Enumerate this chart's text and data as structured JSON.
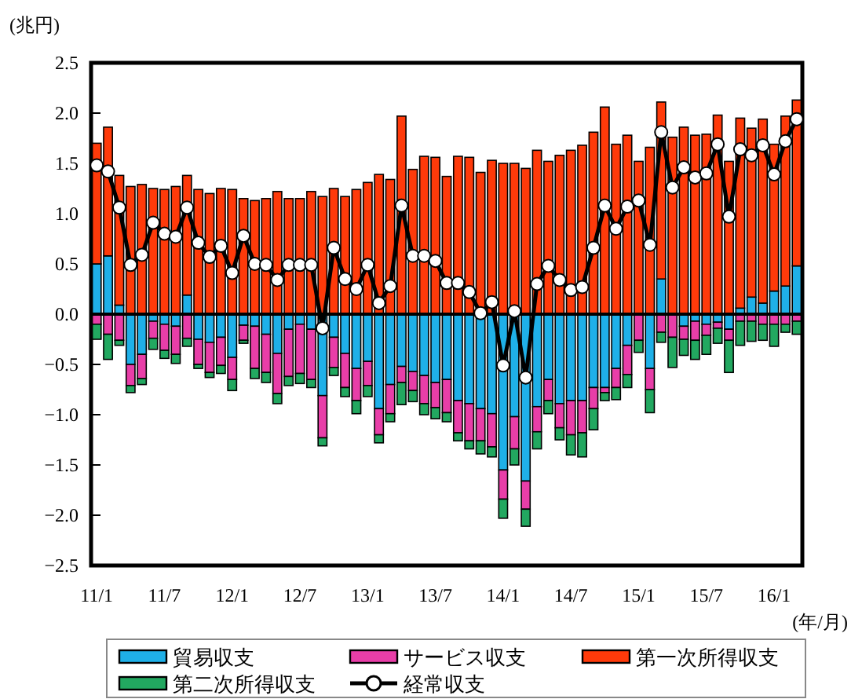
{
  "chart_data": {
    "type": "bar",
    "stacked": true,
    "ylabel": "(兆円)",
    "xlabel": "(年/月)",
    "categories": [
      "11/1",
      null,
      null,
      null,
      null,
      null,
      "11/7",
      null,
      null,
      null,
      null,
      null,
      "12/1",
      null,
      null,
      null,
      null,
      null,
      "12/7",
      null,
      null,
      null,
      null,
      null,
      "13/1",
      null,
      null,
      null,
      null,
      null,
      "13/7",
      null,
      null,
      null,
      null,
      null,
      "14/1",
      null,
      null,
      null,
      null,
      null,
      "14/7",
      null,
      null,
      null,
      null,
      null,
      "15/1",
      null,
      null,
      null,
      null,
      null,
      "15/7",
      null,
      null,
      null,
      null,
      null,
      "16/1",
      null,
      null
    ],
    "ylim": [
      -2.5,
      2.5
    ],
    "yticks": [
      {
        "value": -2.5,
        "label": "−2.5"
      },
      {
        "value": -2.0,
        "label": "−2.0"
      },
      {
        "value": -1.5,
        "label": "−1.5"
      },
      {
        "value": -1.0,
        "label": "−1.0"
      },
      {
        "value": -0.5,
        "label": "−0.5"
      },
      {
        "value": 0.0,
        "label": "0.0"
      },
      {
        "value": 0.5,
        "label": "0.5"
      },
      {
        "value": 1.0,
        "label": "1.0"
      },
      {
        "value": 1.5,
        "label": "1.5"
      },
      {
        "value": 2.0,
        "label": "2.0"
      },
      {
        "value": 2.5,
        "label": "2.5"
      }
    ],
    "legend": "bottom",
    "series": [
      {
        "name": "貿易収支",
        "color": "#1fb0e8",
        "values": [
          0.5,
          0.58,
          0.09,
          -0.5,
          -0.4,
          -0.07,
          -0.1,
          -0.12,
          0.19,
          -0.25,
          -0.28,
          -0.23,
          -0.43,
          -0.11,
          -0.12,
          -0.2,
          -0.39,
          -0.15,
          -0.1,
          -0.15,
          -0.81,
          -0.23,
          -0.39,
          -0.54,
          -0.47,
          -0.94,
          -0.7,
          -0.52,
          -0.57,
          -0.61,
          -0.68,
          -0.65,
          -0.86,
          -0.89,
          -0.94,
          -0.99,
          -1.55,
          -1.02,
          -1.66,
          -0.92,
          -0.65,
          -0.89,
          -0.86,
          -0.86,
          -0.73,
          -0.73,
          -0.54,
          -0.31,
          null,
          -0.54,
          0.35,
          null,
          -0.12,
          -0.07,
          -0.1,
          -0.08,
          -0.15,
          0.06,
          0.17,
          0.11,
          0.23,
          0.28,
          0.48
        ]
      },
      {
        "name": "サービス収支",
        "color": "#e83ea8",
        "values": [
          -0.1,
          -0.2,
          -0.26,
          -0.21,
          -0.24,
          -0.17,
          -0.26,
          -0.28,
          -0.24,
          -0.25,
          -0.3,
          -0.28,
          -0.22,
          -0.15,
          -0.42,
          -0.38,
          -0.4,
          -0.47,
          -0.49,
          -0.5,
          -0.42,
          -0.3,
          -0.34,
          -0.32,
          -0.24,
          -0.26,
          -0.29,
          -0.16,
          -0.19,
          -0.28,
          -0.25,
          -0.33,
          -0.32,
          -0.37,
          -0.32,
          -0.33,
          -0.29,
          -0.32,
          -0.28,
          -0.25,
          -0.21,
          -0.24,
          -0.34,
          -0.32,
          -0.21,
          -0.05,
          -0.19,
          -0.29,
          -0.26,
          -0.21,
          -0.18,
          -0.23,
          -0.13,
          -0.19,
          -0.11,
          -0.06,
          -0.11,
          -0.07,
          -0.07,
          -0.1,
          -0.1,
          -0.1,
          -0.07
        ]
      },
      {
        "name": "第一次所得収支",
        "color": "#ff3a0a",
        "values": [
          1.2,
          1.28,
          1.29,
          1.27,
          1.29,
          1.25,
          1.24,
          1.27,
          1.19,
          1.24,
          1.2,
          1.25,
          1.24,
          1.15,
          1.13,
          1.15,
          1.22,
          1.15,
          1.15,
          1.22,
          1.17,
          1.25,
          1.17,
          1.24,
          1.31,
          1.39,
          1.34,
          1.97,
          1.44,
          1.57,
          1.56,
          1.37,
          1.57,
          1.56,
          1.41,
          1.53,
          1.5,
          1.5,
          1.45,
          1.63,
          1.52,
          1.58,
          1.63,
          1.68,
          1.81,
          2.06,
          1.69,
          1.78,
          1.52,
          1.66,
          1.76,
          1.76,
          1.86,
          1.78,
          1.79,
          1.98,
          1.52,
          1.89,
          1.68,
          1.83,
          1.46,
          1.69,
          1.65
        ]
      },
      {
        "name": "第二次所得収支",
        "color": "#22a860",
        "values": [
          -0.15,
          -0.25,
          -0.05,
          -0.07,
          -0.06,
          -0.11,
          -0.08,
          -0.09,
          -0.08,
          -0.04,
          -0.05,
          -0.08,
          -0.11,
          -0.03,
          -0.1,
          -0.1,
          -0.1,
          -0.09,
          -0.1,
          -0.08,
          -0.08,
          -0.08,
          -0.09,
          -0.13,
          -0.11,
          -0.08,
          -0.08,
          -0.22,
          -0.11,
          -0.11,
          -0.11,
          -0.09,
          -0.08,
          -0.08,
          -0.13,
          -0.1,
          -0.19,
          -0.16,
          -0.17,
          -0.17,
          -0.13,
          -0.12,
          -0.2,
          -0.24,
          -0.21,
          -0.08,
          -0.12,
          -0.13,
          -0.12,
          -0.23,
          -0.1,
          -0.3,
          -0.16,
          -0.19,
          -0.19,
          -0.15,
          -0.32,
          -0.24,
          -0.2,
          -0.16,
          -0.22,
          -0.08,
          -0.13
        ]
      },
      {
        "name": "経常収支",
        "type": "line",
        "color": "#000000",
        "marker": "circle",
        "values": [
          1.48,
          1.42,
          1.06,
          0.49,
          0.59,
          0.91,
          0.8,
          0.77,
          1.06,
          0.71,
          0.57,
          0.68,
          0.41,
          0.78,
          0.5,
          0.49,
          0.34,
          0.49,
          0.49,
          0.49,
          -0.14,
          0.66,
          0.35,
          0.25,
          0.49,
          0.11,
          0.28,
          1.08,
          0.58,
          0.58,
          0.53,
          0.31,
          0.31,
          0.22,
          0.01,
          0.12,
          -0.51,
          0.03,
          -0.63,
          0.3,
          0.48,
          0.34,
          0.24,
          0.27,
          0.66,
          1.08,
          0.85,
          1.07,
          1.13,
          0.69,
          1.81,
          1.26,
          1.46,
          1.36,
          1.4,
          1.69,
          0.97,
          1.64,
          1.58,
          1.68,
          1.39,
          1.72,
          1.94
        ]
      }
    ]
  }
}
